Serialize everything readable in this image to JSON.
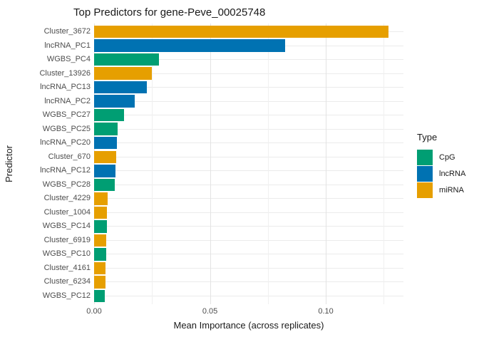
{
  "chart_data": {
    "type": "bar",
    "orientation": "horizontal",
    "title": "Top Predictors for gene-Peve_00025748",
    "xlabel": "Mean Importance (across replicates)",
    "ylabel": "Predictor",
    "categories": [
      "Cluster_3672",
      "lncRNA_PC1",
      "WGBS_PC4",
      "Cluster_13926",
      "lncRNA_PC13",
      "lncRNA_PC2",
      "WGBS_PC27",
      "WGBS_PC25",
      "lncRNA_PC20",
      "Cluster_670",
      "lncRNA_PC12",
      "WGBS_PC28",
      "Cluster_4229",
      "Cluster_1004",
      "WGBS_PC14",
      "Cluster_6919",
      "WGBS_PC10",
      "Cluster_4161",
      "Cluster_6234",
      "WGBS_PC12"
    ],
    "values": [
      0.1271,
      0.0825,
      0.0279,
      0.025,
      0.0228,
      0.0175,
      0.0129,
      0.0102,
      0.0099,
      0.0096,
      0.0091,
      0.0089,
      0.0059,
      0.0054,
      0.0054,
      0.0053,
      0.0053,
      0.0049,
      0.0049,
      0.0047
    ],
    "types": [
      "miRNA",
      "lncRNA",
      "CpG",
      "miRNA",
      "lncRNA",
      "lncRNA",
      "CpG",
      "CpG",
      "lncRNA",
      "miRNA",
      "lncRNA",
      "CpG",
      "miRNA",
      "miRNA",
      "CpG",
      "miRNA",
      "CpG",
      "miRNA",
      "miRNA",
      "CpG"
    ],
    "x_ticks": [
      0.0,
      0.05,
      0.1
    ],
    "x_tick_labels": [
      "0.00",
      "0.05",
      "0.10"
    ],
    "x_minor_ticks": [
      0.025,
      0.075,
      0.125
    ],
    "xlim": [
      0,
      0.1335
    ],
    "grid": true,
    "legend_position": "right"
  },
  "legend": {
    "title": "Type",
    "items": [
      {
        "label": "CpG",
        "color": "#009E73"
      },
      {
        "label": "lncRNA",
        "color": "#0072B2"
      },
      {
        "label": "miRNA",
        "color": "#E69F00"
      }
    ]
  },
  "colors": {
    "CpG": "#009E73",
    "lncRNA": "#0072B2",
    "miRNA": "#E69F00",
    "grid_major": "#e3e3e3",
    "grid_minor": "#f0f0f0",
    "axis_text": "#4d4d4d"
  }
}
